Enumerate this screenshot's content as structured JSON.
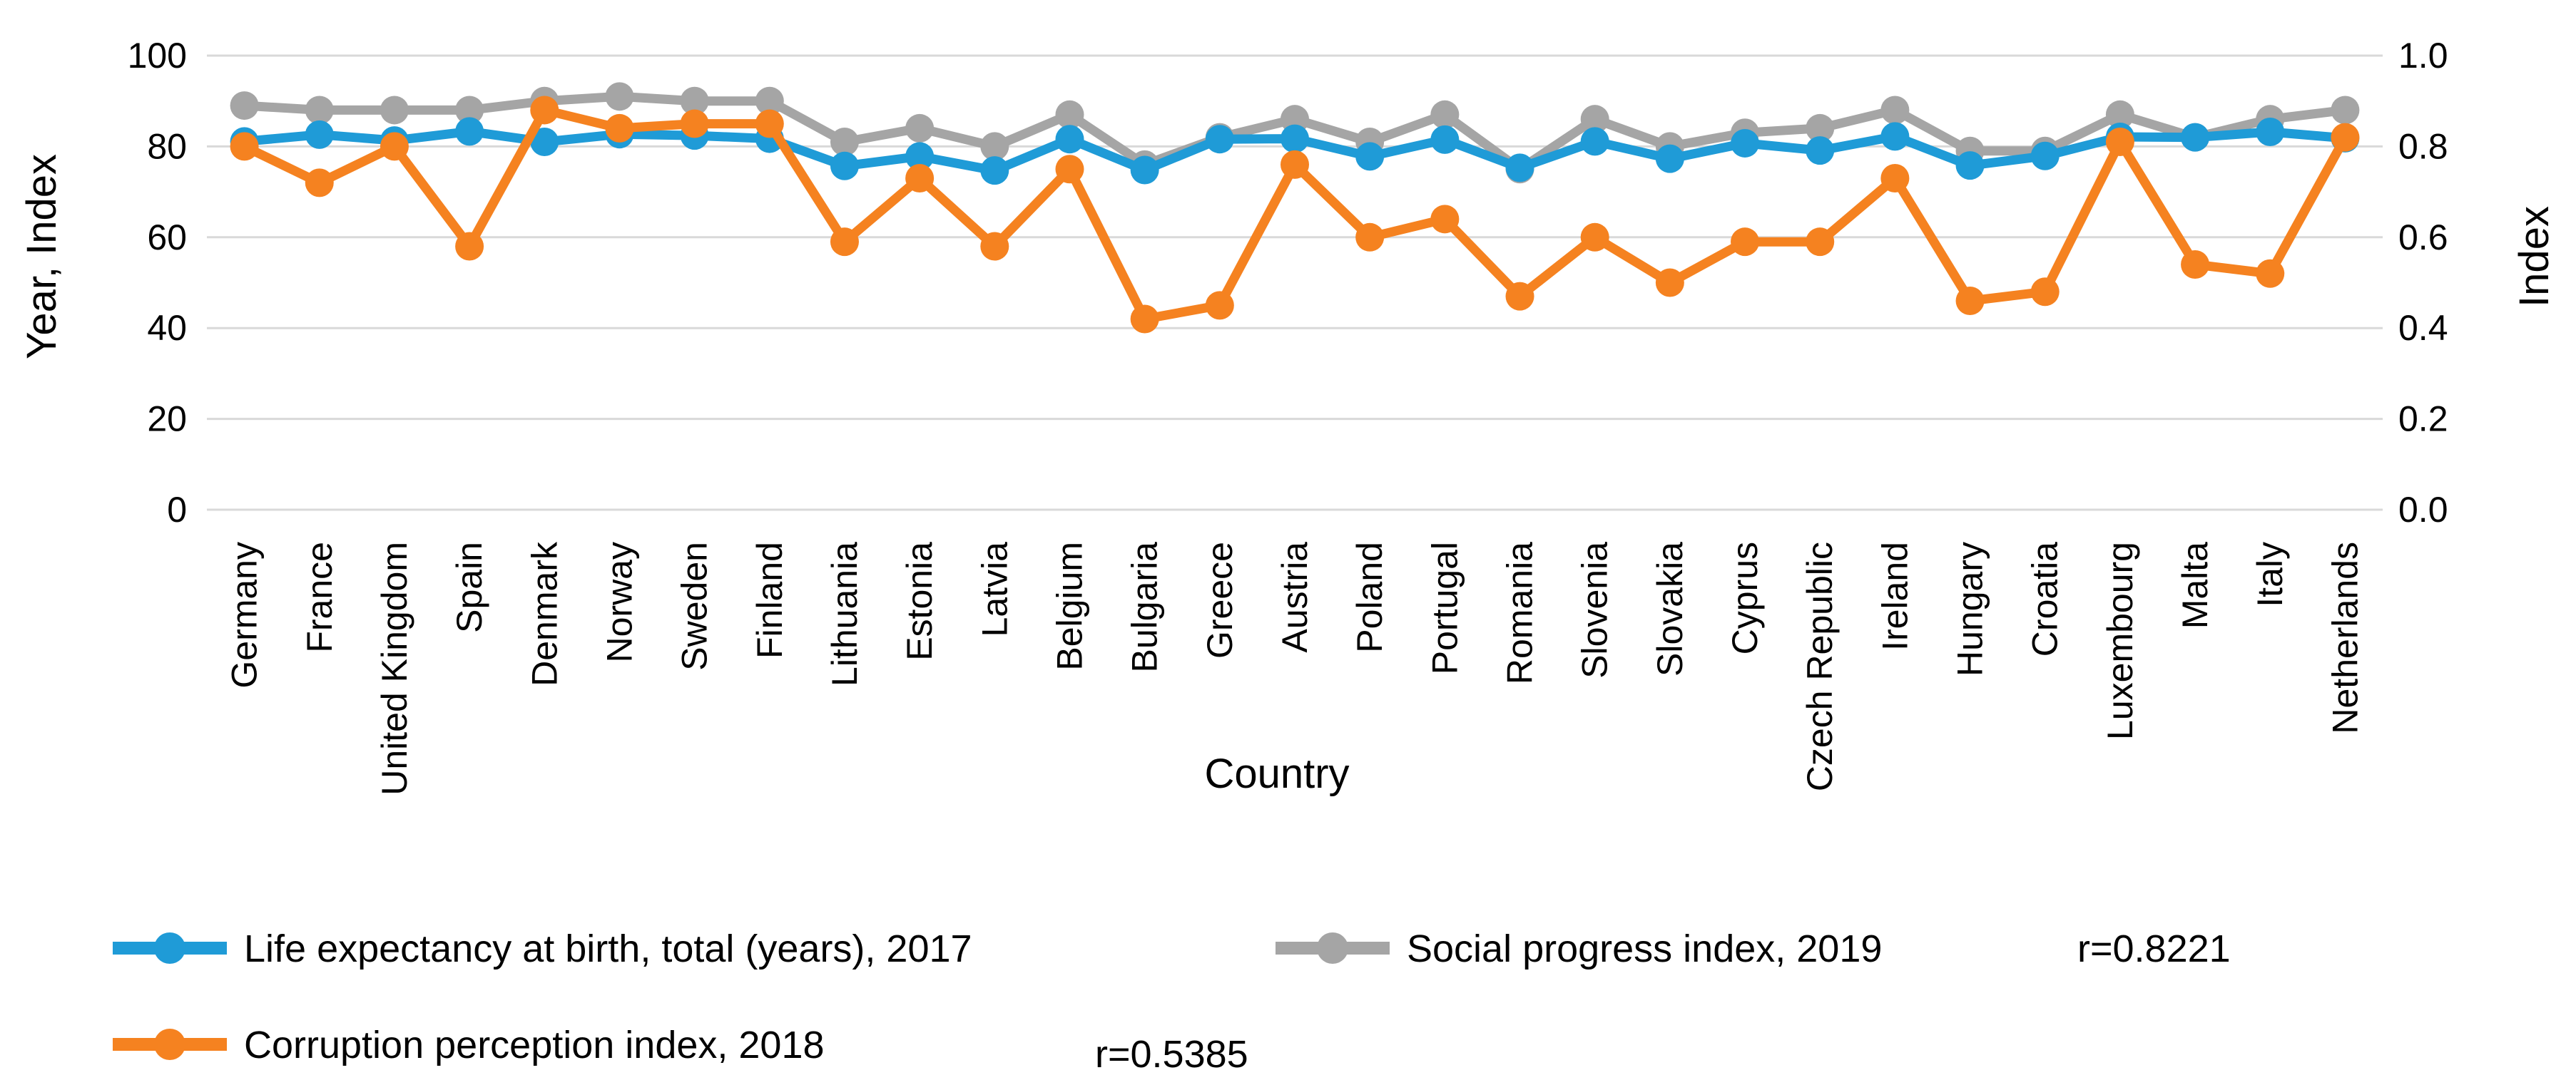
{
  "chart_data": {
    "type": "line",
    "xlabel": "Country",
    "ylabel": "Year, Index",
    "y2label": "Index",
    "ylim": [
      0,
      100
    ],
    "y2lim": [
      0.0,
      1.0
    ],
    "y_ticks": [
      "0",
      "20",
      "40",
      "60",
      "80",
      "100"
    ],
    "y2_ticks": [
      "0.0",
      "0.2",
      "0.4",
      "0.6",
      "0.8",
      "1.0"
    ],
    "grid": true,
    "categories": [
      "Germany",
      "France",
      "United Kingdom",
      "Spain",
      "Denmark",
      "Norway",
      "Sweden",
      "Finland",
      "Lithuania",
      "Estonia",
      "Latvia",
      "Belgium",
      "Bulgaria",
      "Greece",
      "Austria",
      "Poland",
      "Portugal",
      "Romania",
      "Slovenia",
      "Slovakia",
      "Cyprus",
      "Czech Republic",
      "Ireland",
      "Hungary",
      "Croatia",
      "Luxembourg",
      "Malta",
      "Italy",
      "Netherlands"
    ],
    "series": [
      {
        "name": "Life expectancy at birth, total (years), 2017",
        "axis": "left",
        "color": "#1f9bd7",
        "values": [
          81.1,
          82.6,
          81.3,
          83.3,
          81.0,
          82.7,
          82.4,
          81.7,
          75.7,
          77.8,
          74.7,
          81.6,
          74.8,
          81.6,
          81.7,
          77.8,
          81.5,
          75.3,
          81.1,
          77.3,
          80.7,
          79.1,
          82.2,
          75.8,
          77.9,
          82.1,
          82.0,
          83.2,
          81.8
        ]
      },
      {
        "name": "Social progress index, 2019",
        "axis": "right",
        "color": "#a5a5a5",
        "values": [
          0.89,
          0.88,
          0.88,
          0.88,
          0.9,
          0.91,
          0.9,
          0.9,
          0.81,
          0.84,
          0.8,
          0.87,
          0.76,
          0.82,
          0.86,
          0.81,
          0.87,
          0.75,
          0.86,
          0.8,
          0.83,
          0.84,
          0.88,
          0.79,
          0.79,
          0.87,
          0.82,
          0.86,
          0.88
        ]
      },
      {
        "name": "Corruption perception index, 2018",
        "axis": "right",
        "color": "#f58220",
        "values": [
          0.8,
          0.72,
          0.8,
          0.58,
          0.88,
          0.84,
          0.85,
          0.85,
          0.59,
          0.73,
          0.58,
          0.75,
          0.42,
          0.45,
          0.76,
          0.6,
          0.64,
          0.47,
          0.6,
          0.5,
          0.59,
          0.59,
          0.73,
          0.46,
          0.48,
          0.81,
          0.54,
          0.52,
          0.82
        ]
      }
    ],
    "legend": {
      "placement": "bottom",
      "entries": [
        {
          "series": 0,
          "label": "Life expectancy at birth, total (years), 2017"
        },
        {
          "series": 1,
          "label": "Social progress index, 2019",
          "note": "r=0.8221"
        },
        {
          "series": 2,
          "label": "Corruption perception index, 2018",
          "note": "r=0.5385"
        }
      ]
    }
  }
}
